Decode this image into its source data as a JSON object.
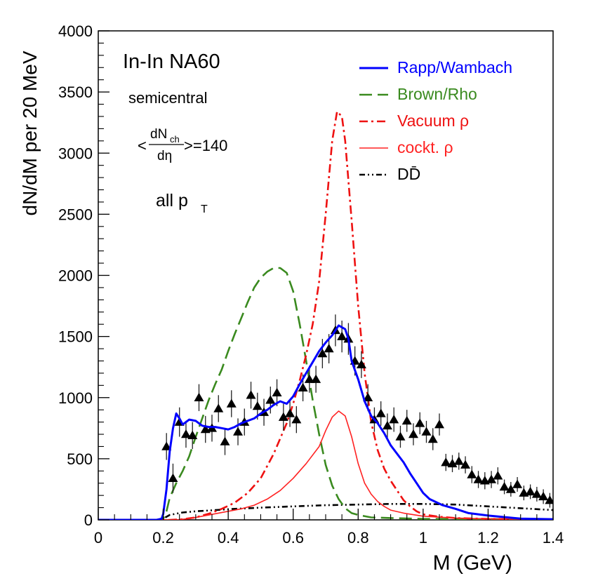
{
  "chart_data": {
    "type": "line",
    "xlabel": "M (GeV)",
    "ylabel": "dN/dM per 20 MeV",
    "xlim": [
      0,
      1.4
    ],
    "ylim": [
      0,
      4000
    ],
    "x_ticks": [
      "0",
      "0.2",
      "0.4",
      "0.6",
      "0.8",
      "1",
      "1.2",
      "1.4"
    ],
    "y_ticks": [
      "0",
      "500",
      "1000",
      "1500",
      "2000",
      "2500",
      "3000",
      "3500",
      "4000"
    ],
    "grid": false,
    "legend_position": "top-right",
    "annotations": {
      "system": "In-In NA60",
      "centrality": "semicentral",
      "multiplicity_lhs_num": "dN",
      "multiplicity_lhs_num_sub": "ch",
      "multiplicity_lhs_den": "dη",
      "multiplicity_value": ">=140",
      "pt_label": "all p",
      "pt_sub": "T",
      "open_bracket": "<"
    },
    "series": [
      {
        "name": "Rapp/Wambach",
        "color": "#0000ff",
        "style": "solid",
        "points": [
          [
            0,
            0
          ],
          [
            0.18,
            0
          ],
          [
            0.195,
            10
          ],
          [
            0.2,
            50
          ],
          [
            0.21,
            250
          ],
          [
            0.22,
            560
          ],
          [
            0.23,
            750
          ],
          [
            0.24,
            870
          ],
          [
            0.25,
            830
          ],
          [
            0.26,
            780
          ],
          [
            0.27,
            800
          ],
          [
            0.28,
            820
          ],
          [
            0.3,
            810
          ],
          [
            0.32,
            770
          ],
          [
            0.34,
            760
          ],
          [
            0.36,
            760
          ],
          [
            0.38,
            750
          ],
          [
            0.4,
            740
          ],
          [
            0.42,
            760
          ],
          [
            0.44,
            790
          ],
          [
            0.46,
            810
          ],
          [
            0.48,
            830
          ],
          [
            0.5,
            870
          ],
          [
            0.52,
            900
          ],
          [
            0.54,
            940
          ],
          [
            0.56,
            970
          ],
          [
            0.58,
            950
          ],
          [
            0.6,
            1010
          ],
          [
            0.62,
            1110
          ],
          [
            0.64,
            1200
          ],
          [
            0.66,
            1290
          ],
          [
            0.68,
            1380
          ],
          [
            0.7,
            1450
          ],
          [
            0.72,
            1510
          ],
          [
            0.74,
            1590
          ],
          [
            0.76,
            1560
          ],
          [
            0.77,
            1480
          ],
          [
            0.78,
            1300
          ],
          [
            0.8,
            1150
          ],
          [
            0.82,
            970
          ],
          [
            0.84,
            850
          ],
          [
            0.86,
            790
          ],
          [
            0.88,
            710
          ],
          [
            0.9,
            610
          ],
          [
            0.92,
            540
          ],
          [
            0.94,
            470
          ],
          [
            0.96,
            380
          ],
          [
            0.98,
            300
          ],
          [
            1.0,
            220
          ],
          [
            1.02,
            170
          ],
          [
            1.06,
            120
          ],
          [
            1.1,
            90
          ],
          [
            1.14,
            55
          ],
          [
            1.2,
            35
          ],
          [
            1.3,
            10
          ],
          [
            1.4,
            5
          ]
        ]
      },
      {
        "name": "Brown/Rho",
        "color": "#3a8a1f",
        "style": "dashed",
        "points": [
          [
            0,
            0
          ],
          [
            0.18,
            0
          ],
          [
            0.2,
            10
          ],
          [
            0.21,
            70
          ],
          [
            0.22,
            180
          ],
          [
            0.24,
            300
          ],
          [
            0.26,
            400
          ],
          [
            0.28,
            520
          ],
          [
            0.3,
            680
          ],
          [
            0.32,
            830
          ],
          [
            0.34,
            980
          ],
          [
            0.36,
            1110
          ],
          [
            0.38,
            1230
          ],
          [
            0.4,
            1380
          ],
          [
            0.42,
            1520
          ],
          [
            0.44,
            1650
          ],
          [
            0.46,
            1780
          ],
          [
            0.48,
            1900
          ],
          [
            0.5,
            1980
          ],
          [
            0.52,
            2030
          ],
          [
            0.54,
            2060
          ],
          [
            0.56,
            2060
          ],
          [
            0.58,
            2020
          ],
          [
            0.6,
            1870
          ],
          [
            0.62,
            1600
          ],
          [
            0.64,
            1300
          ],
          [
            0.66,
            980
          ],
          [
            0.68,
            700
          ],
          [
            0.7,
            450
          ],
          [
            0.72,
            280
          ],
          [
            0.74,
            170
          ],
          [
            0.76,
            95
          ],
          [
            0.78,
            55
          ],
          [
            0.8,
            40
          ],
          [
            0.84,
            20
          ],
          [
            0.9,
            15
          ],
          [
            1.0,
            8
          ],
          [
            1.4,
            5
          ]
        ]
      },
      {
        "name": "Vacuum ρ",
        "color": "#ee1111",
        "style": "dashdot",
        "points": [
          [
            0,
            0
          ],
          [
            0.22,
            0
          ],
          [
            0.26,
            5
          ],
          [
            0.3,
            20
          ],
          [
            0.34,
            50
          ],
          [
            0.38,
            90
          ],
          [
            0.42,
            140
          ],
          [
            0.46,
            220
          ],
          [
            0.5,
            340
          ],
          [
            0.54,
            540
          ],
          [
            0.58,
            790
          ],
          [
            0.6,
            950
          ],
          [
            0.62,
            1140
          ],
          [
            0.64,
            1350
          ],
          [
            0.66,
            1600
          ],
          [
            0.68,
            1950
          ],
          [
            0.7,
            2500
          ],
          [
            0.72,
            3100
          ],
          [
            0.735,
            3340
          ],
          [
            0.75,
            3300
          ],
          [
            0.76,
            3100
          ],
          [
            0.78,
            2450
          ],
          [
            0.8,
            1750
          ],
          [
            0.82,
            1200
          ],
          [
            0.84,
            800
          ],
          [
            0.86,
            570
          ],
          [
            0.88,
            420
          ],
          [
            0.9,
            320
          ],
          [
            0.92,
            240
          ],
          [
            0.94,
            160
          ],
          [
            0.96,
            110
          ],
          [
            0.98,
            70
          ],
          [
            1.0,
            45
          ],
          [
            1.05,
            25
          ],
          [
            1.1,
            15
          ],
          [
            1.2,
            8
          ],
          [
            1.4,
            5
          ]
        ]
      },
      {
        "name": "cockt. ρ",
        "color": "#ff2222",
        "style": "solid-thin",
        "points": [
          [
            0,
            0
          ],
          [
            0.24,
            0
          ],
          [
            0.28,
            10
          ],
          [
            0.32,
            30
          ],
          [
            0.36,
            50
          ],
          [
            0.4,
            70
          ],
          [
            0.44,
            90
          ],
          [
            0.48,
            120
          ],
          [
            0.52,
            170
          ],
          [
            0.56,
            240
          ],
          [
            0.6,
            340
          ],
          [
            0.64,
            460
          ],
          [
            0.68,
            600
          ],
          [
            0.7,
            730
          ],
          [
            0.72,
            840
          ],
          [
            0.74,
            890
          ],
          [
            0.76,
            850
          ],
          [
            0.78,
            680
          ],
          [
            0.8,
            460
          ],
          [
            0.82,
            300
          ],
          [
            0.84,
            210
          ],
          [
            0.86,
            150
          ],
          [
            0.88,
            110
          ],
          [
            0.9,
            80
          ],
          [
            0.94,
            55
          ],
          [
            1.0,
            30
          ],
          [
            1.1,
            15
          ],
          [
            1.2,
            8
          ],
          [
            1.4,
            5
          ]
        ]
      },
      {
        "name": "DD̄",
        "color": "#000000",
        "style": "dashdotdot",
        "points": [
          [
            0,
            0
          ],
          [
            0.18,
            0
          ],
          [
            0.2,
            10
          ],
          [
            0.22,
            40
          ],
          [
            0.26,
            60
          ],
          [
            0.3,
            70
          ],
          [
            0.36,
            80
          ],
          [
            0.42,
            90
          ],
          [
            0.5,
            100
          ],
          [
            0.6,
            110
          ],
          [
            0.7,
            120
          ],
          [
            0.8,
            125
          ],
          [
            0.9,
            130
          ],
          [
            1.0,
            130
          ],
          [
            1.1,
            125
          ],
          [
            1.2,
            110
          ],
          [
            1.3,
            95
          ],
          [
            1.4,
            80
          ]
        ]
      },
      {
        "name": "data",
        "color": "#000000",
        "style": "markers",
        "points": [
          [
            0.21,
            600,
            110
          ],
          [
            0.23,
            340,
            120
          ],
          [
            0.25,
            800,
            120
          ],
          [
            0.27,
            700,
            110
          ],
          [
            0.29,
            690,
            110
          ],
          [
            0.31,
            1000,
            110
          ],
          [
            0.33,
            740,
            110
          ],
          [
            0.35,
            750,
            110
          ],
          [
            0.37,
            910,
            110
          ],
          [
            0.39,
            640,
            110
          ],
          [
            0.41,
            950,
            110
          ],
          [
            0.43,
            720,
            110
          ],
          [
            0.45,
            800,
            110
          ],
          [
            0.47,
            1020,
            110
          ],
          [
            0.49,
            930,
            110
          ],
          [
            0.51,
            880,
            110
          ],
          [
            0.53,
            980,
            110
          ],
          [
            0.55,
            1040,
            110
          ],
          [
            0.57,
            840,
            110
          ],
          [
            0.59,
            870,
            110
          ],
          [
            0.61,
            820,
            110
          ],
          [
            0.63,
            1080,
            110
          ],
          [
            0.65,
            1150,
            110
          ],
          [
            0.67,
            1150,
            110
          ],
          [
            0.69,
            1360,
            120
          ],
          [
            0.71,
            1400,
            120
          ],
          [
            0.73,
            1550,
            130
          ],
          [
            0.75,
            1500,
            130
          ],
          [
            0.77,
            1480,
            130
          ],
          [
            0.79,
            1300,
            120
          ],
          [
            0.81,
            1270,
            110
          ],
          [
            0.83,
            1000,
            110
          ],
          [
            0.85,
            820,
            100
          ],
          [
            0.87,
            870,
            100
          ],
          [
            0.89,
            770,
            100
          ],
          [
            0.91,
            820,
            100
          ],
          [
            0.93,
            680,
            90
          ],
          [
            0.95,
            810,
            90
          ],
          [
            0.97,
            700,
            90
          ],
          [
            0.99,
            790,
            90
          ],
          [
            1.01,
            720,
            90
          ],
          [
            1.03,
            660,
            90
          ],
          [
            1.05,
            780,
            90
          ],
          [
            1.07,
            470,
            70
          ],
          [
            1.09,
            460,
            70
          ],
          [
            1.11,
            480,
            70
          ],
          [
            1.13,
            450,
            70
          ],
          [
            1.15,
            370,
            70
          ],
          [
            1.17,
            330,
            70
          ],
          [
            1.19,
            320,
            70
          ],
          [
            1.21,
            330,
            70
          ],
          [
            1.23,
            360,
            70
          ],
          [
            1.25,
            270,
            60
          ],
          [
            1.27,
            250,
            60
          ],
          [
            1.29,
            290,
            60
          ],
          [
            1.31,
            220,
            60
          ],
          [
            1.33,
            230,
            60
          ],
          [
            1.35,
            210,
            60
          ],
          [
            1.37,
            190,
            60
          ],
          [
            1.39,
            160,
            60
          ]
        ]
      }
    ]
  }
}
